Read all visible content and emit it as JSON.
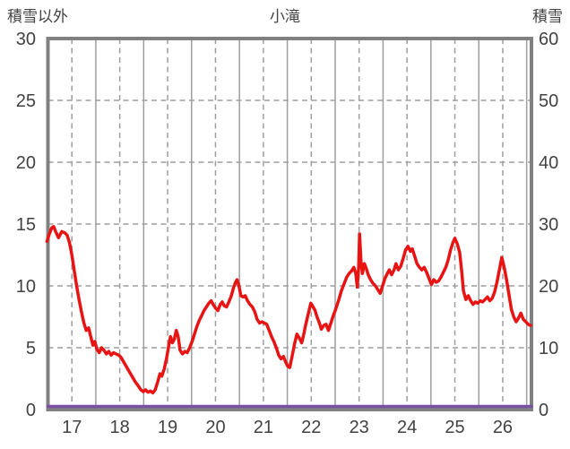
{
  "chart_data": {
    "type": "line",
    "title": "小滝",
    "left_axis_label": "積雪以外",
    "right_axis_label": "積雪",
    "x_range": [
      16.5,
      26.6
    ],
    "x_ticks": [
      17,
      18,
      19,
      20,
      21,
      22,
      23,
      24,
      25,
      26
    ],
    "left_ylim": [
      0,
      30
    ],
    "left_yticks": [
      0,
      5,
      10,
      15,
      20,
      25,
      30
    ],
    "right_ylim": [
      0,
      60
    ],
    "right_yticks": [
      0,
      10,
      20,
      30,
      40,
      50,
      60
    ],
    "grid": {
      "horizontal_style": "dashed",
      "vertical_integer_style": "dashed",
      "vertical_half_style": "solid",
      "grid_color": "#9e9e9e",
      "frame_color": "#808080"
    },
    "series": [
      {
        "name": "積雪以外",
        "axis": "left",
        "color": "#e81414",
        "points": [
          [
            16.48,
            13.6
          ],
          [
            16.53,
            14.2
          ],
          [
            16.58,
            14.7
          ],
          [
            16.62,
            14.8
          ],
          [
            16.66,
            14.4
          ],
          [
            16.72,
            13.9
          ],
          [
            16.79,
            14.4
          ],
          [
            16.85,
            14.3
          ],
          [
            16.9,
            14.1
          ],
          [
            16.95,
            13.5
          ],
          [
            17.0,
            12.5
          ],
          [
            17.05,
            11.2
          ],
          [
            17.1,
            10.0
          ],
          [
            17.15,
            8.9
          ],
          [
            17.2,
            7.9
          ],
          [
            17.25,
            7.0
          ],
          [
            17.3,
            6.4
          ],
          [
            17.35,
            6.6
          ],
          [
            17.4,
            5.8
          ],
          [
            17.44,
            5.2
          ],
          [
            17.48,
            5.5
          ],
          [
            17.52,
            4.9
          ],
          [
            17.57,
            4.6
          ],
          [
            17.62,
            5.0
          ],
          [
            17.67,
            4.8
          ],
          [
            17.72,
            4.5
          ],
          [
            17.77,
            4.7
          ],
          [
            17.82,
            4.4
          ],
          [
            17.87,
            4.6
          ],
          [
            17.92,
            4.5
          ],
          [
            17.98,
            4.4
          ],
          [
            18.03,
            4.2
          ],
          [
            18.09,
            3.8
          ],
          [
            18.15,
            3.4
          ],
          [
            18.21,
            3.0
          ],
          [
            18.27,
            2.6
          ],
          [
            18.33,
            2.2
          ],
          [
            18.39,
            1.9
          ],
          [
            18.44,
            1.6
          ],
          [
            18.49,
            1.45
          ],
          [
            18.54,
            1.6
          ],
          [
            18.59,
            1.4
          ],
          [
            18.64,
            1.5
          ],
          [
            18.69,
            1.35
          ],
          [
            18.74,
            1.6
          ],
          [
            18.79,
            2.2
          ],
          [
            18.84,
            2.9
          ],
          [
            18.88,
            2.7
          ],
          [
            18.93,
            3.3
          ],
          [
            18.98,
            4.2
          ],
          [
            19.03,
            5.3
          ],
          [
            19.06,
            5.9
          ],
          [
            19.1,
            5.4
          ],
          [
            19.14,
            5.7
          ],
          [
            19.18,
            6.4
          ],
          [
            19.22,
            5.9
          ],
          [
            19.26,
            4.8
          ],
          [
            19.31,
            4.5
          ],
          [
            19.36,
            4.7
          ],
          [
            19.41,
            4.6
          ],
          [
            19.46,
            5.0
          ],
          [
            19.51,
            5.5
          ],
          [
            19.56,
            6.1
          ],
          [
            19.61,
            6.7
          ],
          [
            19.66,
            7.2
          ],
          [
            19.71,
            7.6
          ],
          [
            19.76,
            8.0
          ],
          [
            19.81,
            8.3
          ],
          [
            19.86,
            8.6
          ],
          [
            19.91,
            8.8
          ],
          [
            19.95,
            8.5
          ],
          [
            20.0,
            8.2
          ],
          [
            20.05,
            8.0
          ],
          [
            20.1,
            8.5
          ],
          [
            20.14,
            8.7
          ],
          [
            20.18,
            8.4
          ],
          [
            20.23,
            8.3
          ],
          [
            20.28,
            8.7
          ],
          [
            20.33,
            9.2
          ],
          [
            20.38,
            9.9
          ],
          [
            20.42,
            10.3
          ],
          [
            20.45,
            10.5
          ],
          [
            20.49,
            10.0
          ],
          [
            20.53,
            9.2
          ],
          [
            20.58,
            9.1
          ],
          [
            20.62,
            9.2
          ],
          [
            20.67,
            8.8
          ],
          [
            20.72,
            8.5
          ],
          [
            20.77,
            8.3
          ],
          [
            20.82,
            7.9
          ],
          [
            20.87,
            7.3
          ],
          [
            20.92,
            7.0
          ],
          [
            20.97,
            7.1
          ],
          [
            21.02,
            7.0
          ],
          [
            21.07,
            6.9
          ],
          [
            21.12,
            6.4
          ],
          [
            21.17,
            5.9
          ],
          [
            21.22,
            5.5
          ],
          [
            21.27,
            5.0
          ],
          [
            21.32,
            4.4
          ],
          [
            21.37,
            4.1
          ],
          [
            21.42,
            4.3
          ],
          [
            21.47,
            3.8
          ],
          [
            21.51,
            3.5
          ],
          [
            21.55,
            3.4
          ],
          [
            21.6,
            4.3
          ],
          [
            21.65,
            5.3
          ],
          [
            21.7,
            6.1
          ],
          [
            21.75,
            5.8
          ],
          [
            21.8,
            5.4
          ],
          [
            21.84,
            6.0
          ],
          [
            21.88,
            6.8
          ],
          [
            21.93,
            7.6
          ],
          [
            21.99,
            8.6
          ],
          [
            22.04,
            8.3
          ],
          [
            22.08,
            8.0
          ],
          [
            22.12,
            7.5
          ],
          [
            22.17,
            7.0
          ],
          [
            22.21,
            6.5
          ],
          [
            22.26,
            6.8
          ],
          [
            22.31,
            6.9
          ],
          [
            22.36,
            6.4
          ],
          [
            22.41,
            7.0
          ],
          [
            22.46,
            7.6
          ],
          [
            22.51,
            8.1
          ],
          [
            22.57,
            8.8
          ],
          [
            22.63,
            9.6
          ],
          [
            22.69,
            10.2
          ],
          [
            22.74,
            10.7
          ],
          [
            22.79,
            11.0
          ],
          [
            22.84,
            11.2
          ],
          [
            22.89,
            11.5
          ],
          [
            22.93,
            11.0
          ],
          [
            22.96,
            9.9
          ],
          [
            22.99,
            11.5
          ],
          [
            23.01,
            14.2
          ],
          [
            23.04,
            12.0
          ],
          [
            23.07,
            11.0
          ],
          [
            23.11,
            11.8
          ],
          [
            23.15,
            11.4
          ],
          [
            23.19,
            10.9
          ],
          [
            23.24,
            10.5
          ],
          [
            23.29,
            10.2
          ],
          [
            23.34,
            10.0
          ],
          [
            23.39,
            9.7
          ],
          [
            23.44,
            9.4
          ],
          [
            23.49,
            10.0
          ],
          [
            23.54,
            10.6
          ],
          [
            23.59,
            11.0
          ],
          [
            23.63,
            11.3
          ],
          [
            23.68,
            10.9
          ],
          [
            23.73,
            11.3
          ],
          [
            23.77,
            11.8
          ],
          [
            23.82,
            11.3
          ],
          [
            23.87,
            11.6
          ],
          [
            23.92,
            12.2
          ],
          [
            23.97,
            12.9
          ],
          [
            24.02,
            13.2
          ],
          [
            24.07,
            12.8
          ],
          [
            24.11,
            13.0
          ],
          [
            24.16,
            12.4
          ],
          [
            24.21,
            11.8
          ],
          [
            24.26,
            11.5
          ],
          [
            24.31,
            11.3
          ],
          [
            24.36,
            11.5
          ],
          [
            24.41,
            11.1
          ],
          [
            24.46,
            10.6
          ],
          [
            24.51,
            10.1
          ],
          [
            24.56,
            10.5
          ],
          [
            24.61,
            10.3
          ],
          [
            24.66,
            10.4
          ],
          [
            24.71,
            10.7
          ],
          [
            24.76,
            11.1
          ],
          [
            24.81,
            11.5
          ],
          [
            24.86,
            12.1
          ],
          [
            24.91,
            12.9
          ],
          [
            24.96,
            13.5
          ],
          [
            25.0,
            13.85
          ],
          [
            25.05,
            13.4
          ],
          [
            25.1,
            12.7
          ],
          [
            25.14,
            11.3
          ],
          [
            25.18,
            9.6
          ],
          [
            25.23,
            8.9
          ],
          [
            25.28,
            9.2
          ],
          [
            25.33,
            8.8
          ],
          [
            25.38,
            8.5
          ],
          [
            25.43,
            8.7
          ],
          [
            25.48,
            8.6
          ],
          [
            25.53,
            8.8
          ],
          [
            25.58,
            8.7
          ],
          [
            25.63,
            8.9
          ],
          [
            25.68,
            9.1
          ],
          [
            25.73,
            8.8
          ],
          [
            25.78,
            9.0
          ],
          [
            25.83,
            9.5
          ],
          [
            25.88,
            10.3
          ],
          [
            25.93,
            11.3
          ],
          [
            25.98,
            12.3
          ],
          [
            26.03,
            11.5
          ],
          [
            26.08,
            10.5
          ],
          [
            26.13,
            9.3
          ],
          [
            26.18,
            8.1
          ],
          [
            26.23,
            7.5
          ],
          [
            26.28,
            7.1
          ],
          [
            26.33,
            7.4
          ],
          [
            26.38,
            7.8
          ],
          [
            26.43,
            7.3
          ],
          [
            26.48,
            7.1
          ],
          [
            26.53,
            6.9
          ],
          [
            26.58,
            6.8
          ]
        ]
      },
      {
        "name": "積雪",
        "axis": "right",
        "color": "#7b4fa5",
        "points": [
          [
            16.5,
            0
          ],
          [
            17.0,
            0
          ],
          [
            18.0,
            0
          ],
          [
            19.0,
            0
          ],
          [
            20.0,
            0
          ],
          [
            21.0,
            0
          ],
          [
            22.0,
            0
          ],
          [
            23.0,
            0
          ],
          [
            24.0,
            0
          ],
          [
            25.0,
            0
          ],
          [
            26.0,
            0
          ],
          [
            26.6,
            0
          ]
        ]
      }
    ]
  }
}
